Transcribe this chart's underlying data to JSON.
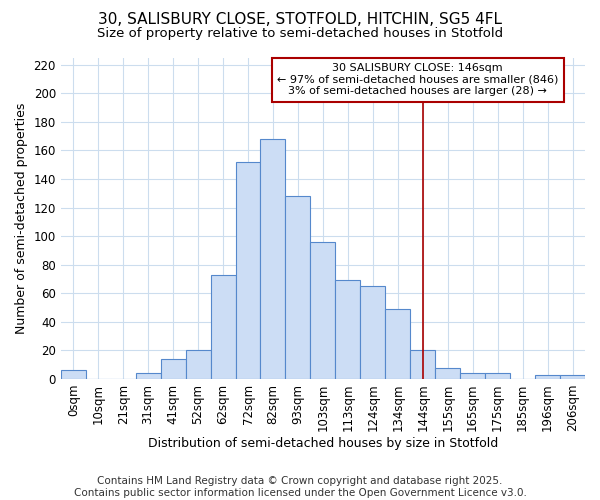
{
  "title_line1": "30, SALISBURY CLOSE, STOTFOLD, HITCHIN, SG5 4FL",
  "title_line2": "Size of property relative to semi-detached houses in Stotfold",
  "xlabel": "Distribution of semi-detached houses by size in Stotfold",
  "ylabel": "Number of semi-detached properties",
  "bar_labels": [
    "0sqm",
    "10sqm",
    "21sqm",
    "31sqm",
    "41sqm",
    "52sqm",
    "62sqm",
    "72sqm",
    "82sqm",
    "93sqm",
    "103sqm",
    "113sqm",
    "124sqm",
    "134sqm",
    "144sqm",
    "155sqm",
    "165sqm",
    "175sqm",
    "185sqm",
    "196sqm",
    "206sqm"
  ],
  "bar_values": [
    6,
    0,
    0,
    4,
    14,
    20,
    73,
    152,
    168,
    128,
    96,
    69,
    65,
    49,
    20,
    8,
    4,
    4,
    0,
    3,
    3
  ],
  "bar_facecolor": "#ccddf5",
  "bar_edgecolor": "#5588cc",
  "vline_x": 14,
  "vline_color": "#aa0000",
  "annotation_line1": "30 SALISBURY CLOSE: 146sqm",
  "annotation_line2": "← 97% of semi-detached houses are smaller (846)",
  "annotation_line3": "3% of semi-detached houses are larger (28) →",
  "annotation_box_edgecolor": "#aa0000",
  "ylim": [
    0,
    225
  ],
  "yticks": [
    0,
    20,
    40,
    60,
    80,
    100,
    120,
    140,
    160,
    180,
    200,
    220
  ],
  "footnote": "Contains HM Land Registry data © Crown copyright and database right 2025.\nContains public sector information licensed under the Open Government Licence v3.0.",
  "bg_color": "#ffffff",
  "grid_color": "#ccddee",
  "title1_fontsize": 11,
  "title2_fontsize": 9.5,
  "xlabel_fontsize": 9,
  "ylabel_fontsize": 9,
  "tick_fontsize": 8.5,
  "annot_fontsize": 8,
  "footnote_fontsize": 7.5
}
